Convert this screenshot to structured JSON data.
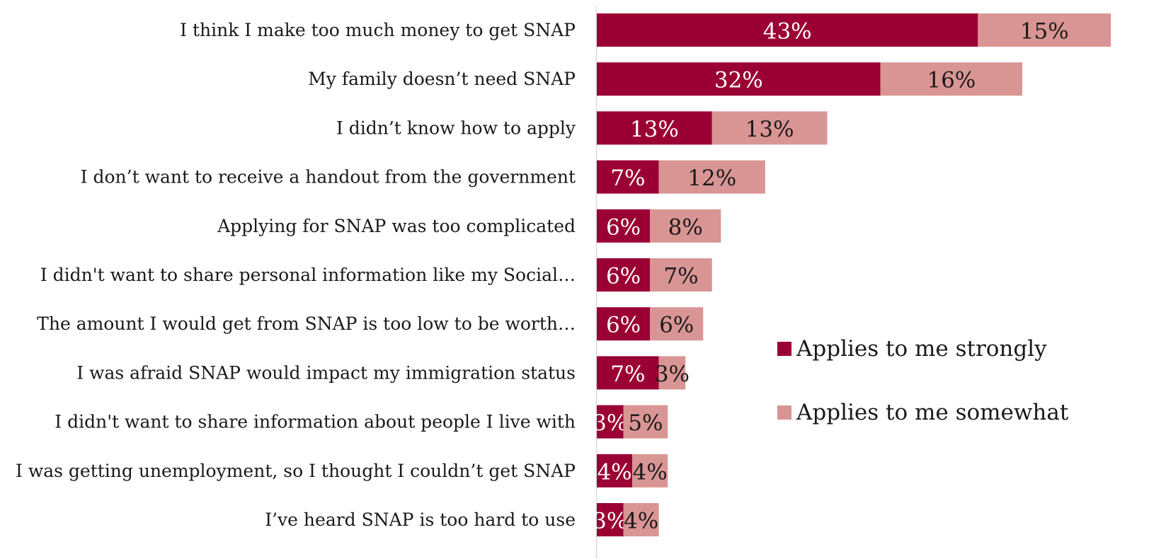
{
  "chart_data": {
    "type": "bar",
    "orientation": "horizontal",
    "stacked": true,
    "title": "",
    "xlabel": "",
    "ylabel": "",
    "grid": false,
    "legend_position": "right",
    "categories": [
      "I think I make too much money to get SNAP",
      "My family doesn’t need SNAP",
      "I didn’t know how to apply",
      "I don’t want to receive a handout from the government",
      "Applying for SNAP was too complicated",
      "I didn't want to share personal information like my Social…",
      "The amount I would get from SNAP is too low to be worth…",
      "I was afraid SNAP would impact my immigration status",
      "I didn't want to share information about people I live with",
      "I was getting unemployment, so I thought I couldn’t get SNAP",
      "I’ve heard SNAP is too hard to use"
    ],
    "series": [
      {
        "name": "Applies to me strongly",
        "color": "#9b0034",
        "label_color": "#ffffff",
        "values": [
          43,
          32,
          13,
          7,
          6,
          6,
          6,
          7,
          3,
          4,
          3
        ]
      },
      {
        "name": "Applies to me somewhat",
        "color": "#d99594",
        "label_color": "#1a1a1a",
        "values": [
          15,
          16,
          13,
          12,
          8,
          7,
          6,
          3,
          5,
          4,
          4
        ]
      }
    ],
    "value_suffix": "%"
  }
}
